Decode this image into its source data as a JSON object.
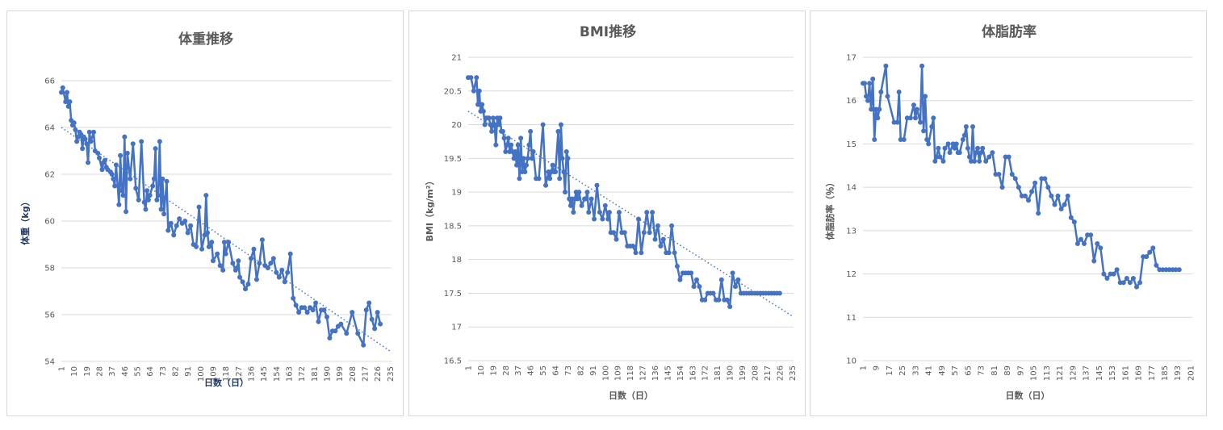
{
  "chart_data": [
    {
      "type": "line",
      "title": "体重推移",
      "xlabel": "日数（日）",
      "ylabel": "体重（kg）",
      "ylim": [
        54,
        66
      ],
      "yticks": [
        54,
        56,
        58,
        60,
        62,
        64,
        66
      ],
      "xticks": [
        1,
        10,
        19,
        28,
        37,
        46,
        55,
        64,
        73,
        82,
        91,
        100,
        109,
        118,
        127,
        136,
        145,
        154,
        163,
        172,
        181,
        190,
        199,
        208,
        217,
        226,
        235
      ],
      "xlim": [
        1,
        236
      ],
      "grid": true,
      "trendline": {
        "style": "dotted",
        "from": [
          1,
          64.0
        ],
        "to": [
          236,
          54.4
        ]
      },
      "series": [
        {
          "color": "#4472c4",
          "x": [
            1,
            2,
            4,
            5,
            6,
            7,
            8,
            9,
            10,
            11,
            12,
            13,
            14,
            15,
            16,
            17,
            18,
            19,
            20,
            21,
            22,
            24,
            25,
            27,
            28,
            30,
            31,
            32,
            33,
            34,
            36,
            37,
            38,
            39,
            40,
            42,
            43,
            44,
            45,
            46,
            47,
            48,
            50,
            52,
            54,
            56,
            58,
            60,
            61,
            62,
            63,
            64,
            66,
            67,
            68,
            69,
            70,
            71,
            72,
            73,
            74,
            75,
            76,
            77,
            79,
            81,
            83,
            85,
            87,
            89,
            91,
            93,
            95,
            97,
            99,
            101,
            103,
            104,
            105,
            106,
            108,
            109,
            112,
            114,
            116,
            117,
            118,
            120,
            123,
            125,
            126,
            127,
            128,
            130,
            132,
            134,
            136,
            138,
            140,
            142,
            144,
            146,
            148,
            150,
            152,
            154,
            156,
            158,
            160,
            162,
            164,
            166,
            168,
            170,
            172,
            174,
            176,
            178,
            180,
            182,
            184,
            186,
            188,
            190,
            192,
            194,
            196,
            198,
            200,
            204,
            208,
            212,
            216,
            218,
            220,
            222,
            224,
            226,
            228
          ],
          "values": [
            65.5,
            65.7,
            65.1,
            65.5,
            64.9,
            65.1,
            64.3,
            64.1,
            64.2,
            63.9,
            63.4,
            63.6,
            63.8,
            63.7,
            63.1,
            63.6,
            63.5,
            63.3,
            62.5,
            63.8,
            63.4,
            63.8,
            63.0,
            62.9,
            62.7,
            62.2,
            62.5,
            62.6,
            62.3,
            62.2,
            62.1,
            62.0,
            61.8,
            61.5,
            62.4,
            60.7,
            62.8,
            61.3,
            61.1,
            63.6,
            60.4,
            62.9,
            61.8,
            63.3,
            61.4,
            60.9,
            63.4,
            60.8,
            60.5,
            61.3,
            60.9,
            61.1,
            61.5,
            61.8,
            63.1,
            60.9,
            61.1,
            63.4,
            60.5,
            61.8,
            60.3,
            61.0,
            61.7,
            59.6,
            59.9,
            59.4,
            59.8,
            60.1,
            59.9,
            60.0,
            59.5,
            59.8,
            59.0,
            58.9,
            60.6,
            58.8,
            59.4,
            61.1,
            59.5,
            58.9,
            59.1,
            58.3,
            58.6,
            58.1,
            57.9,
            59.1,
            58.6,
            59.1,
            58.2,
            57.9,
            58.0,
            58.3,
            57.6,
            57.4,
            57.1,
            57.3,
            58.4,
            58.8,
            57.5,
            58.2,
            59.2,
            58.1,
            58.0,
            58.2,
            58.4,
            57.8,
            57.6,
            57.9,
            57.4,
            57.8,
            58.6,
            56.7,
            56.4,
            56.1,
            56.3,
            56.3,
            56.1,
            56.3,
            56.2,
            56.5,
            55.7,
            56.2,
            56.2,
            55.9,
            55.0,
            55.3,
            55.3,
            55.5,
            55.6,
            55.2,
            56.1,
            55.2,
            54.7,
            56.2,
            56.5,
            55.8,
            55.4,
            56.1,
            55.6
          ]
        }
      ]
    },
    {
      "type": "line",
      "title": "BMI推移",
      "xlabel": "日数（日）",
      "ylabel": "BMI（kg/m²）",
      "ylim": [
        16.5,
        21
      ],
      "yticks": [
        16.5,
        17,
        17.5,
        18,
        18.5,
        19,
        19.5,
        20,
        20.5,
        21
      ],
      "xticks": [
        1,
        10,
        19,
        28,
        37,
        46,
        55,
        64,
        73,
        82,
        91,
        100,
        109,
        118,
        127,
        136,
        145,
        154,
        163,
        172,
        181,
        190,
        199,
        208,
        217,
        226,
        235
      ],
      "xlim": [
        1,
        236
      ],
      "grid": true,
      "trendline": {
        "style": "dotted",
        "from": [
          1,
          20.2
        ],
        "to": [
          236,
          17.15
        ]
      },
      "series": [
        {
          "color": "#4472c4",
          "x": [
            1,
            3,
            5,
            7,
            8,
            9,
            10,
            11,
            12,
            13,
            14,
            15,
            16,
            17,
            18,
            19,
            20,
            21,
            22,
            23,
            24,
            25,
            26,
            27,
            28,
            29,
            30,
            31,
            32,
            33,
            34,
            35,
            36,
            37,
            38,
            39,
            40,
            41,
            42,
            43,
            44,
            45,
            46,
            47,
            48,
            50,
            52,
            55,
            57,
            59,
            60,
            61,
            62,
            63,
            64,
            66,
            67,
            68,
            69,
            70,
            71,
            72,
            73,
            74,
            75,
            76,
            77,
            78,
            79,
            80,
            81,
            83,
            85,
            86,
            87,
            88,
            90,
            92,
            94,
            96,
            98,
            100,
            102,
            103,
            104,
            106,
            108,
            110,
            112,
            114,
            116,
            118,
            120,
            122,
            124,
            126,
            128,
            130,
            132,
            134,
            136,
            138,
            140,
            142,
            144,
            146,
            148,
            150,
            152,
            154,
            156,
            158,
            160,
            162,
            164,
            166,
            168,
            170,
            172,
            174,
            176,
            178,
            180,
            182,
            184,
            186,
            188,
            190,
            192,
            194,
            196,
            198,
            200,
            202,
            204,
            206,
            208,
            210,
            212,
            214,
            216,
            218,
            220,
            222,
            224,
            226
          ],
          "values": [
            20.7,
            20.7,
            20.5,
            20.7,
            20.3,
            20.5,
            20.2,
            20.3,
            20.2,
            20.0,
            20.1,
            20.1,
            20.1,
            20.0,
            19.9,
            20.1,
            20.0,
            19.7,
            20.1,
            20.0,
            20.1,
            19.9,
            19.9,
            19.8,
            19.6,
            19.7,
            19.8,
            19.6,
            19.7,
            19.6,
            19.5,
            19.6,
            19.4,
            19.7,
            19.2,
            19.8,
            19.3,
            19.5,
            19.3,
            19.4,
            19.5,
            19.7,
            19.9,
            19.5,
            19.6,
            19.2,
            19.2,
            20.0,
            19.1,
            19.3,
            19.2,
            19.3,
            19.4,
            19.3,
            19.3,
            19.9,
            19.2,
            20.0,
            19.5,
            19.3,
            19.0,
            19.6,
            19.5,
            18.9,
            18.8,
            18.9,
            18.7,
            18.9,
            19.0,
            18.9,
            19.0,
            18.8,
            18.9,
            18.9,
            19.0,
            18.7,
            18.9,
            18.6,
            19.1,
            18.7,
            18.6,
            18.8,
            18.6,
            18.7,
            18.4,
            18.4,
            18.3,
            18.7,
            18.4,
            18.4,
            18.2,
            18.2,
            18.2,
            18.1,
            18.6,
            18.1,
            18.4,
            18.7,
            18.4,
            18.7,
            18.3,
            18.5,
            18.2,
            18.3,
            18.1,
            18.1,
            18.5,
            18.1,
            17.9,
            17.7,
            17.8,
            17.8,
            17.8,
            17.8,
            17.6,
            17.7,
            17.6,
            17.4,
            17.4,
            17.5,
            17.5,
            17.5,
            17.4,
            17.4,
            17.7,
            17.4,
            17.4,
            17.3,
            17.8,
            17.6,
            17.7,
            17.5,
            17.5,
            17.5,
            17.5,
            17.5,
            17.5,
            17.5,
            17.5,
            17.5,
            17.5,
            17.5,
            17.5,
            17.5,
            17.5,
            17.5
          ]
        }
      ]
    },
    {
      "type": "line",
      "title": "体脂肪率",
      "xlabel": "日数（日）",
      "ylabel": "体脂肪率（％）",
      "ylim": [
        10,
        17
      ],
      "yticks": [
        10,
        11,
        12,
        13,
        14,
        15,
        16,
        17
      ],
      "xticks": [
        1,
        9,
        17,
        25,
        33,
        41,
        49,
        57,
        65,
        73,
        81,
        89,
        97,
        105,
        113,
        121,
        129,
        137,
        145,
        153,
        161,
        169,
        177,
        185,
        193,
        201
      ],
      "xlim": [
        1,
        202
      ],
      "grid": true,
      "series": [
        {
          "color": "#4472c4",
          "x": [
            1,
            2,
            3,
            4,
            5,
            6,
            7,
            8,
            9,
            10,
            11,
            12,
            15,
            16,
            20,
            22,
            23,
            24,
            26,
            28,
            30,
            32,
            33,
            34,
            36,
            37,
            38,
            39,
            40,
            41,
            43,
            44,
            45,
            46,
            47,
            48,
            50,
            51,
            53,
            54,
            56,
            57,
            58,
            59,
            60,
            62,
            63,
            64,
            65,
            66,
            67,
            68,
            69,
            70,
            71,
            72,
            73,
            74,
            76,
            78,
            80,
            82,
            84,
            86,
            88,
            90,
            92,
            94,
            96,
            98,
            100,
            102,
            104,
            106,
            108,
            110,
            112,
            114,
            116,
            118,
            120,
            122,
            124,
            126,
            128,
            130,
            132,
            134,
            136,
            138,
            140,
            142,
            144,
            146,
            148,
            150,
            152,
            154,
            156,
            158,
            160,
            162,
            164,
            166,
            168,
            170,
            172,
            174,
            176,
            178,
            180,
            182,
            184,
            186,
            188,
            190,
            192,
            194
          ],
          "values": [
            16.4,
            16.4,
            16.1,
            16.0,
            16.4,
            15.8,
            16.5,
            15.1,
            15.8,
            15.6,
            15.8,
            16.2,
            16.8,
            16.1,
            15.5,
            15.5,
            16.2,
            15.1,
            15.1,
            15.6,
            15.6,
            15.9,
            15.6,
            15.8,
            15.5,
            16.8,
            15.3,
            16.1,
            15.1,
            15.0,
            15.4,
            15.6,
            14.6,
            14.7,
            14.9,
            14.7,
            14.6,
            14.9,
            15.0,
            14.8,
            15.0,
            14.9,
            15.0,
            14.8,
            14.8,
            15.1,
            15.2,
            15.4,
            14.9,
            14.7,
            14.6,
            15.4,
            14.6,
            14.8,
            14.9,
            14.6,
            14.8,
            14.9,
            14.6,
            14.7,
            14.8,
            14.3,
            14.3,
            14.0,
            14.7,
            14.7,
            14.3,
            14.2,
            14.0,
            13.8,
            13.8,
            13.7,
            13.9,
            14.1,
            13.4,
            14.2,
            14.2,
            14.0,
            13.8,
            13.6,
            13.8,
            13.5,
            13.6,
            13.8,
            13.3,
            13.2,
            12.7,
            12.8,
            12.7,
            12.9,
            12.9,
            12.3,
            12.7,
            12.6,
            12.0,
            11.9,
            12.0,
            12.0,
            12.1,
            11.8,
            11.8,
            11.9,
            11.8,
            11.9,
            11.7,
            11.8,
            12.4,
            12.4,
            12.5,
            12.6,
            12.2,
            12.1,
            12.1,
            12.1,
            12.1,
            12.1,
            12.1,
            12.1
          ]
        }
      ]
    }
  ]
}
